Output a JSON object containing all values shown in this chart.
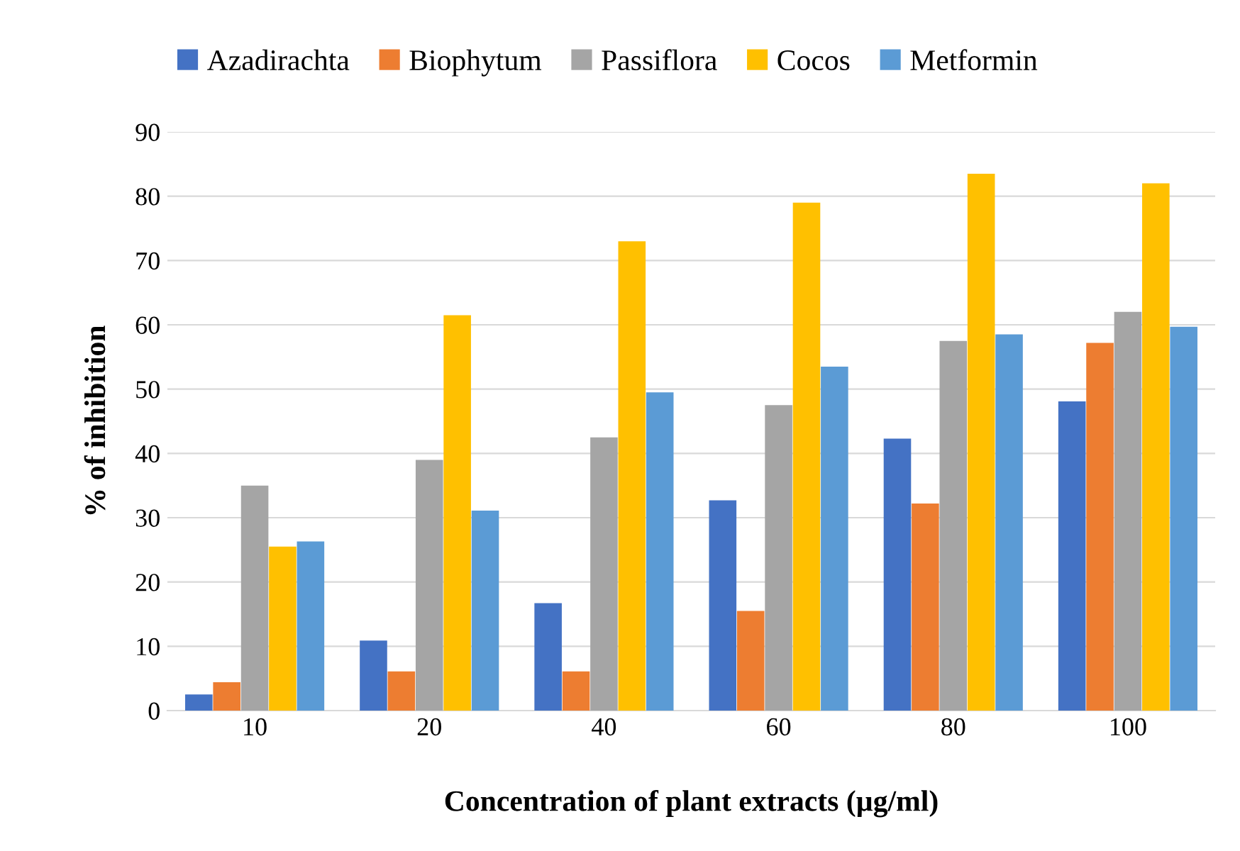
{
  "chart_data": {
    "type": "bar",
    "xlabel": "Concentration of plant extracts (µg/ml)",
    "ylabel": "% of inhibition",
    "categories": [
      "10",
      "20",
      "40",
      "60",
      "80",
      "100"
    ],
    "series": [
      {
        "name": "Azadirachta",
        "color": "#4472c4",
        "values": [
          2.5,
          10.9,
          16.7,
          32.7,
          42.3,
          48.1
        ]
      },
      {
        "name": "Biophytum",
        "color": "#ed7d31",
        "values": [
          4.4,
          6.1,
          6.1,
          15.5,
          32.2,
          57.2
        ]
      },
      {
        "name": "Passiflora",
        "color": "#a5a5a5",
        "values": [
          35,
          39,
          42.5,
          47.5,
          57.5,
          62
        ]
      },
      {
        "name": "Cocos",
        "color": "#ffc000",
        "values": [
          25.5,
          61.5,
          73,
          79,
          83.5,
          82
        ]
      },
      {
        "name": "Metformin",
        "color": "#5b9bd5",
        "values": [
          26.3,
          31.1,
          49.5,
          53.5,
          58.5,
          59.7
        ]
      }
    ],
    "ylim": [
      0,
      90
    ],
    "yticks": [
      0,
      10,
      20,
      30,
      40,
      50,
      60,
      70,
      80,
      90
    ],
    "grid": "y",
    "legend": "top"
  }
}
